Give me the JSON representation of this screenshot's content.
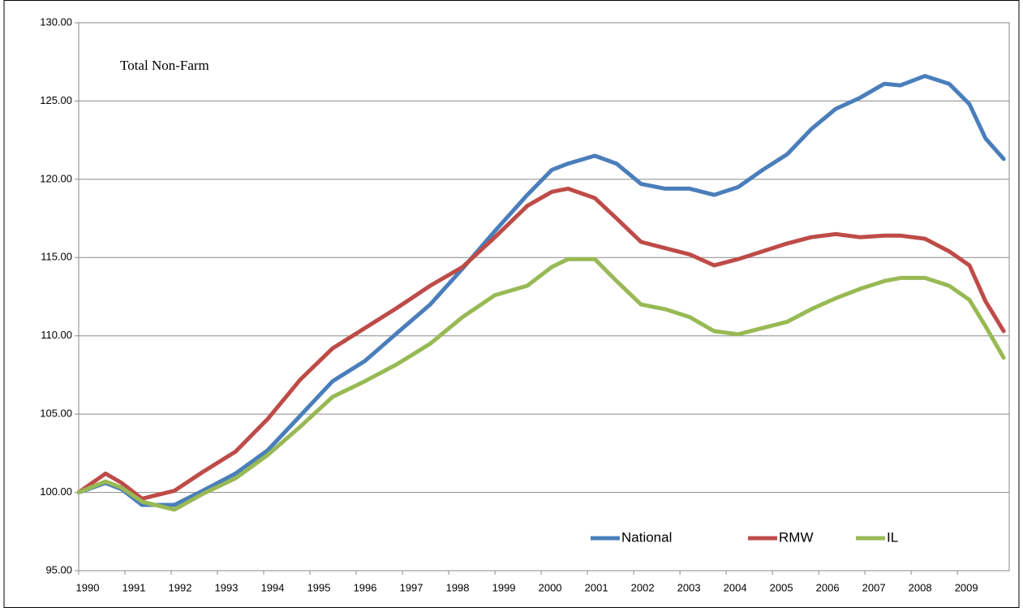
{
  "chart_data": {
    "type": "line",
    "title": "Total Non-Farm",
    "x": [
      1990.0,
      1990.58,
      1990.93,
      1991.37,
      1992.07,
      1992.68,
      1993.39,
      1994.09,
      1994.79,
      1995.49,
      1996.19,
      1996.89,
      1997.6,
      1998.3,
      1999.0,
      1999.7,
      2000.23,
      2000.58,
      2001.16,
      2001.63,
      2002.16,
      2002.68,
      2003.21,
      2003.74,
      2004.26,
      2004.79,
      2005.32,
      2005.84,
      2006.37,
      2006.89,
      2007.42,
      2007.77,
      2008.3,
      2008.82,
      2009.26,
      2009.61,
      2010.0
    ],
    "series": [
      {
        "name": "National",
        "color": "#4a7ebb",
        "values": [
          100.0,
          100.6,
          100.2,
          99.2,
          99.2,
          100.1,
          101.2,
          102.7,
          104.9,
          107.1,
          108.4,
          110.2,
          112.0,
          114.3,
          116.7,
          119.0,
          120.6,
          121.0,
          121.5,
          121.0,
          119.7,
          119.4,
          119.4,
          119.0,
          119.5,
          120.6,
          121.6,
          123.2,
          124.5,
          125.2,
          126.1,
          126.0,
          126.6,
          126.1,
          124.8,
          122.6,
          121.3
        ]
      },
      {
        "name": "RMW",
        "color": "#be4b48",
        "values": [
          100.0,
          101.2,
          100.6,
          99.6,
          100.1,
          101.3,
          102.6,
          104.7,
          107.2,
          109.2,
          110.5,
          111.8,
          113.2,
          114.4,
          116.3,
          118.3,
          119.2,
          119.4,
          118.8,
          117.5,
          116.0,
          115.6,
          115.2,
          114.5,
          114.9,
          115.4,
          115.9,
          116.3,
          116.5,
          116.3,
          116.4,
          116.4,
          116.2,
          115.4,
          114.5,
          112.2,
          110.3
        ]
      },
      {
        "name": "IL",
        "color": "#98b954",
        "values": [
          100.0,
          100.7,
          100.3,
          99.4,
          98.9,
          99.9,
          100.9,
          102.4,
          104.2,
          106.1,
          107.1,
          108.2,
          109.5,
          111.2,
          112.6,
          113.2,
          114.4,
          114.9,
          114.9,
          113.5,
          112.0,
          111.7,
          111.2,
          110.3,
          110.1,
          110.5,
          110.9,
          111.7,
          112.4,
          113.0,
          113.5,
          113.7,
          113.7,
          113.2,
          112.3,
          110.6,
          108.6
        ]
      }
    ],
    "xlim": [
      1990,
      2010.12
    ],
    "xticks": [
      1990,
      1991,
      1992,
      1993,
      1994,
      1995,
      1996,
      1997,
      1998,
      1999,
      2000,
      2001,
      2002,
      2003,
      2004,
      2005,
      2006,
      2007,
      2008,
      2009
    ],
    "ylim": [
      95,
      130
    ],
    "yticks": [
      {
        "value": 95,
        "label": "95.00"
      },
      {
        "value": 100,
        "label": "100.00"
      },
      {
        "value": 105,
        "label": "105.00"
      },
      {
        "value": 110,
        "label": "110.00"
      },
      {
        "value": 115,
        "label": "115.00"
      },
      {
        "value": 120,
        "label": "120.00"
      },
      {
        "value": 125,
        "label": "125.00"
      },
      {
        "value": 130,
        "label": "130.00"
      }
    ],
    "grid": true,
    "legend": "lower right"
  }
}
